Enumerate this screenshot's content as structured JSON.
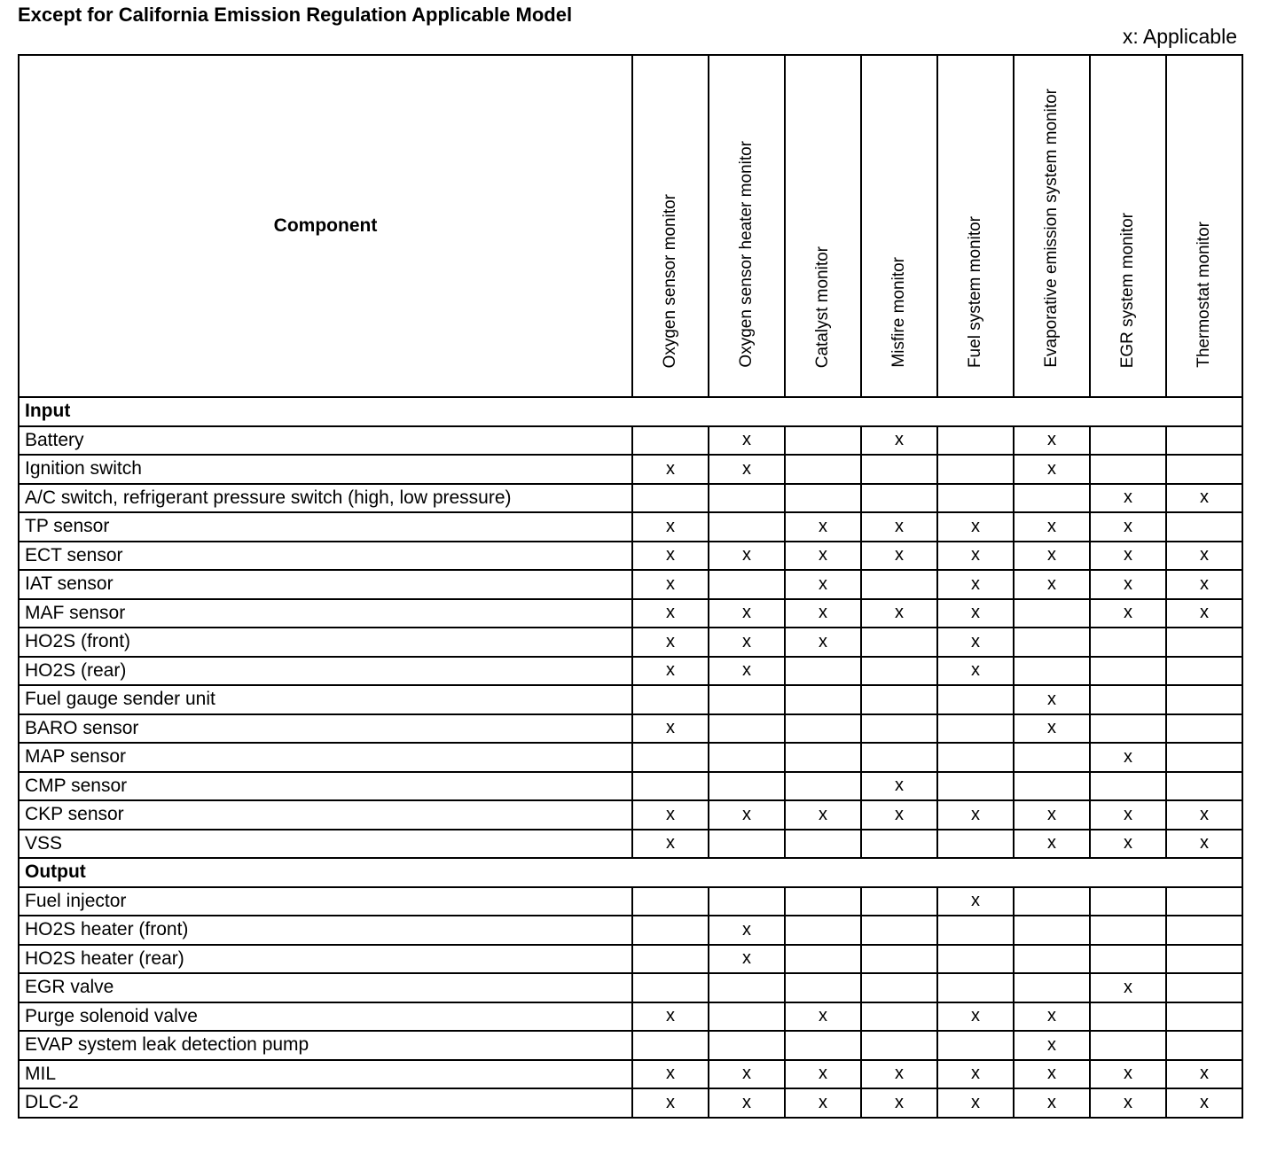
{
  "title": "Except for California Emission Regulation Applicable Model",
  "legend": "x: Applicable",
  "header": {
    "component": "Component",
    "monitors": [
      "Oxygen sensor monitor",
      "Oxygen sensor heater monitor",
      "Catalyst monitor",
      "Misfire monitor",
      "Fuel system monitor",
      "Evaporative emission system monitor",
      "EGR system monitor",
      "Thermostat monitor"
    ]
  },
  "mark": "x",
  "sections": [
    {
      "name": "Input",
      "rows": [
        {
          "component": "Battery",
          "marks": [
            0,
            1,
            0,
            1,
            0,
            1,
            0,
            0
          ]
        },
        {
          "component": "Ignition switch",
          "marks": [
            1,
            1,
            0,
            0,
            0,
            1,
            0,
            0
          ]
        },
        {
          "component": "A/C switch, refrigerant pressure switch (high, low pressure)",
          "marks": [
            0,
            0,
            0,
            0,
            0,
            0,
            1,
            1
          ]
        },
        {
          "component": "TP sensor",
          "marks": [
            1,
            0,
            1,
            1,
            1,
            1,
            1,
            0
          ]
        },
        {
          "component": "ECT sensor",
          "marks": [
            1,
            1,
            1,
            1,
            1,
            1,
            1,
            1
          ]
        },
        {
          "component": "IAT sensor",
          "marks": [
            1,
            0,
            1,
            0,
            1,
            1,
            1,
            1
          ]
        },
        {
          "component": "MAF sensor",
          "marks": [
            1,
            1,
            1,
            1,
            1,
            0,
            1,
            1
          ]
        },
        {
          "component": "HO2S (front)",
          "marks": [
            1,
            1,
            1,
            0,
            1,
            0,
            0,
            0
          ]
        },
        {
          "component": "HO2S (rear)",
          "marks": [
            1,
            1,
            0,
            0,
            1,
            0,
            0,
            0
          ]
        },
        {
          "component": "Fuel gauge sender unit",
          "marks": [
            0,
            0,
            0,
            0,
            0,
            1,
            0,
            0
          ]
        },
        {
          "component": "BARO sensor",
          "marks": [
            1,
            0,
            0,
            0,
            0,
            1,
            0,
            0
          ]
        },
        {
          "component": "MAP sensor",
          "marks": [
            0,
            0,
            0,
            0,
            0,
            0,
            1,
            0
          ]
        },
        {
          "component": "CMP sensor",
          "marks": [
            0,
            0,
            0,
            1,
            0,
            0,
            0,
            0
          ]
        },
        {
          "component": "CKP sensor",
          "marks": [
            1,
            1,
            1,
            1,
            1,
            1,
            1,
            1
          ]
        },
        {
          "component": "VSS",
          "marks": [
            1,
            0,
            0,
            0,
            0,
            1,
            1,
            1
          ]
        }
      ]
    },
    {
      "name": "Output",
      "rows": [
        {
          "component": "Fuel injector",
          "marks": [
            0,
            0,
            0,
            0,
            1,
            0,
            0,
            0
          ]
        },
        {
          "component": "HO2S heater (front)",
          "marks": [
            0,
            1,
            0,
            0,
            0,
            0,
            0,
            0
          ]
        },
        {
          "component": "HO2S heater (rear)",
          "marks": [
            0,
            1,
            0,
            0,
            0,
            0,
            0,
            0
          ]
        },
        {
          "component": "EGR valve",
          "marks": [
            0,
            0,
            0,
            0,
            0,
            0,
            1,
            0
          ]
        },
        {
          "component": "Purge solenoid valve",
          "marks": [
            1,
            0,
            1,
            0,
            1,
            1,
            0,
            0
          ]
        },
        {
          "component": "EVAP system leak detection pump",
          "marks": [
            0,
            0,
            0,
            0,
            0,
            1,
            0,
            0
          ]
        },
        {
          "component": "MIL",
          "marks": [
            1,
            1,
            1,
            1,
            1,
            1,
            1,
            1
          ]
        },
        {
          "component": "DLC-2",
          "marks": [
            1,
            1,
            1,
            1,
            1,
            1,
            1,
            1
          ]
        }
      ]
    }
  ]
}
